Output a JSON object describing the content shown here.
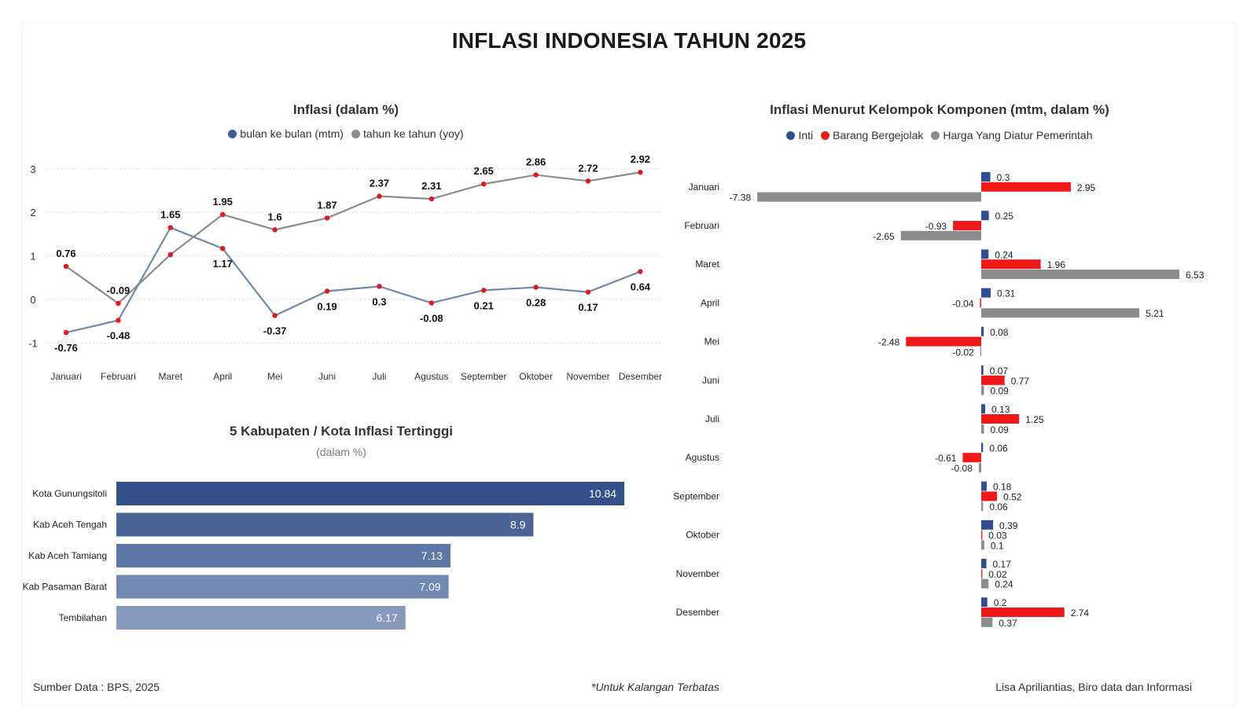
{
  "title": "INFLASI INDONESIA TAHUN 2025",
  "footer": {
    "source": "Sumber Data : BPS, 2025",
    "note": "*Untuk Kalangan Terbatas",
    "author": "Lisa Apriliantias, Biro data dan Informasi"
  },
  "chart_data": [
    {
      "type": "line",
      "title": "Inflasi (dalam %)",
      "categories": [
        "Januari",
        "Februari",
        "Maret",
        "April",
        "Mei",
        "Juni",
        "Juli",
        "Agustus",
        "September",
        "Oktober",
        "November",
        "Desember"
      ],
      "yticks": [
        3,
        2,
        1,
        0,
        -1
      ],
      "ylim": [
        -1,
        3
      ],
      "grid": true,
      "legend_position": "top-center",
      "series": [
        {
          "name": "bulan ke bulan (mtm)",
          "color": "#6f88b0",
          "legend_color": "#3b5a9a",
          "values": [
            -0.76,
            -0.48,
            1.65,
            1.17,
            -0.37,
            0.19,
            0.3,
            -0.08,
            0.21,
            0.28,
            0.17,
            0.64
          ]
        },
        {
          "name": "tahun ke tahun (yoy)",
          "color": "#8c8c8c",
          "legend_color": "#8c8c8c",
          "values": [
            0.76,
            -0.09,
            1.03,
            1.95,
            1.6,
            1.87,
            2.37,
            2.31,
            2.65,
            2.86,
            2.72,
            2.92
          ]
        }
      ],
      "data_labels": [
        {
          "text": "-0.76",
          "for": "mtm",
          "index": 0
        },
        {
          "text": "0.76",
          "for": "yoy",
          "index": 0
        },
        {
          "text": "-0.48",
          "for": "mtm",
          "index": 1
        },
        {
          "text": "-0.09",
          "for": "yoy",
          "index": 1
        },
        {
          "text": "1.65",
          "for": "mtm",
          "index": 2
        },
        {
          "text": "1.17",
          "for": "mtm",
          "index": 3
        },
        {
          "text": "1.95",
          "for": "yoy",
          "index": 3
        },
        {
          "text": "-0.37",
          "for": "mtm",
          "index": 4
        },
        {
          "text": "1.6",
          "for": "yoy",
          "index": 4
        },
        {
          "text": "0.19",
          "for": "mtm",
          "index": 5
        },
        {
          "text": "1.87",
          "for": "yoy",
          "index": 5
        },
        {
          "text": "0.3",
          "for": "mtm",
          "index": 6
        },
        {
          "text": "2.37",
          "for": "yoy",
          "index": 6
        },
        {
          "text": "-0.08",
          "for": "mtm",
          "index": 7
        },
        {
          "text": "2.31",
          "for": "yoy",
          "index": 7
        },
        {
          "text": "0.21",
          "for": "mtm",
          "index": 8
        },
        {
          "text": "2.65",
          "for": "yoy",
          "index": 8
        },
        {
          "text": "0.28",
          "for": "mtm",
          "index": 9
        },
        {
          "text": "2.86",
          "for": "yoy",
          "index": 9
        },
        {
          "text": "0.17",
          "for": "mtm",
          "index": 10
        },
        {
          "text": "2.72",
          "for": "yoy",
          "index": 10
        },
        {
          "text": "0.64",
          "for": "mtm",
          "index": 11
        },
        {
          "text": "2.92",
          "for": "yoy",
          "index": 11
        }
      ],
      "marker_color": "#e8151b"
    },
    {
      "type": "bar",
      "orientation": "horizontal",
      "title": "5 Kabupaten / Kota Inflasi Tertinggi",
      "subtitle": "(dalam %)",
      "categories": [
        "Kota Gunungsitoli",
        "Kab Aceh Tengah",
        "Kab Aceh Tamiang",
        "Kab Pasaman Barat",
        "Tembilahan"
      ],
      "values": [
        10.84,
        8.9,
        7.13,
        7.09,
        6.17
      ],
      "labels": [
        "10.84",
        "8.9",
        "7.13",
        "7.09",
        "6.17"
      ],
      "colors": [
        "#34508a",
        "#4a6498",
        "#5d77a6",
        "#7088b2",
        "#8799bd"
      ]
    },
    {
      "type": "bar",
      "orientation": "horizontal",
      "title": "Inflasi Menurut Kelompok Komponen (mtm, dalam %)",
      "categories": [
        "Januari",
        "Februari",
        "Maret",
        "April",
        "Mei",
        "Juni",
        "Juli",
        "Agustus",
        "September",
        "Oktober",
        "November",
        "Desember"
      ],
      "legend_position": "top-center",
      "series": [
        {
          "name": "Inti",
          "color": "#2f4f93",
          "values": [
            0.3,
            0.25,
            0.24,
            0.31,
            0.08,
            0.07,
            0.13,
            0.06,
            0.18,
            0.39,
            0.17,
            0.2
          ],
          "labels": [
            "0.3",
            "0.25",
            "0.24",
            "0.31",
            "0.08",
            "0.07",
            "0.13",
            "0.06",
            "0.18",
            "0.39",
            "0.17",
            "0.2"
          ]
        },
        {
          "name": "Barang Bergejolak",
          "color": "#f01818",
          "values": [
            2.95,
            -0.93,
            1.96,
            -0.04,
            -2.48,
            0.77,
            1.25,
            -0.61,
            0.52,
            0.03,
            0.02,
            2.74
          ],
          "labels": [
            "2.95",
            "-0.93",
            "1.96",
            "-0.04",
            "-2.48",
            "0.77",
            "1.25",
            "-0.61",
            "0.52",
            "0.03",
            "0.02",
            "2.74"
          ]
        },
        {
          "name": "Harga Yang Diatur Pemerintah",
          "color": "#8c8c8c",
          "values": [
            -7.38,
            -2.65,
            6.53,
            5.21,
            -0.02,
            0.09,
            0.09,
            -0.08,
            0.06,
            0.1,
            0.24,
            0.37
          ],
          "labels": [
            "-7.38",
            "-2.65",
            "6.53",
            "5.21",
            "-0.02",
            "0.09",
            "0.09",
            "-0.08",
            "0.06",
            "0.1",
            "0.24",
            "0.37"
          ]
        }
      ]
    }
  ]
}
